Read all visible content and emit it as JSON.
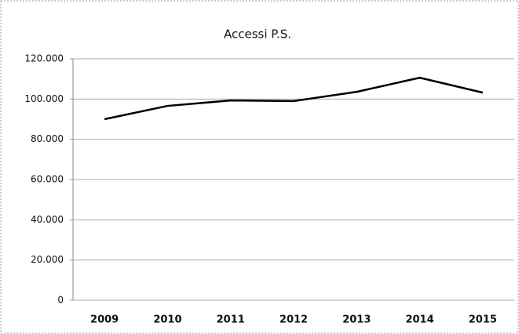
{
  "chart_data": {
    "type": "line",
    "title": "Accessi P.S.",
    "categories": [
      "2009",
      "2010",
      "2011",
      "2012",
      "2013",
      "2014",
      "2015"
    ],
    "series": [
      {
        "name": "Accessi P.S.",
        "color": "#000000",
        "values": [
          90000,
          96600,
          99300,
          99000,
          103600,
          110600,
          103200
        ]
      }
    ],
    "ylim": [
      0,
      120000
    ],
    "yticks": [
      0,
      {
        "value": 20000,
        "label": "20.000"
      },
      {
        "value": 40000,
        "label": "40.000"
      },
      {
        "value": 60000,
        "label": "60.000"
      },
      {
        "value": 80000,
        "label": "80.000"
      },
      {
        "value": 100000,
        "label": "100.000"
      },
      {
        "value": 120000,
        "label": "120.000"
      }
    ],
    "grid": true
  }
}
